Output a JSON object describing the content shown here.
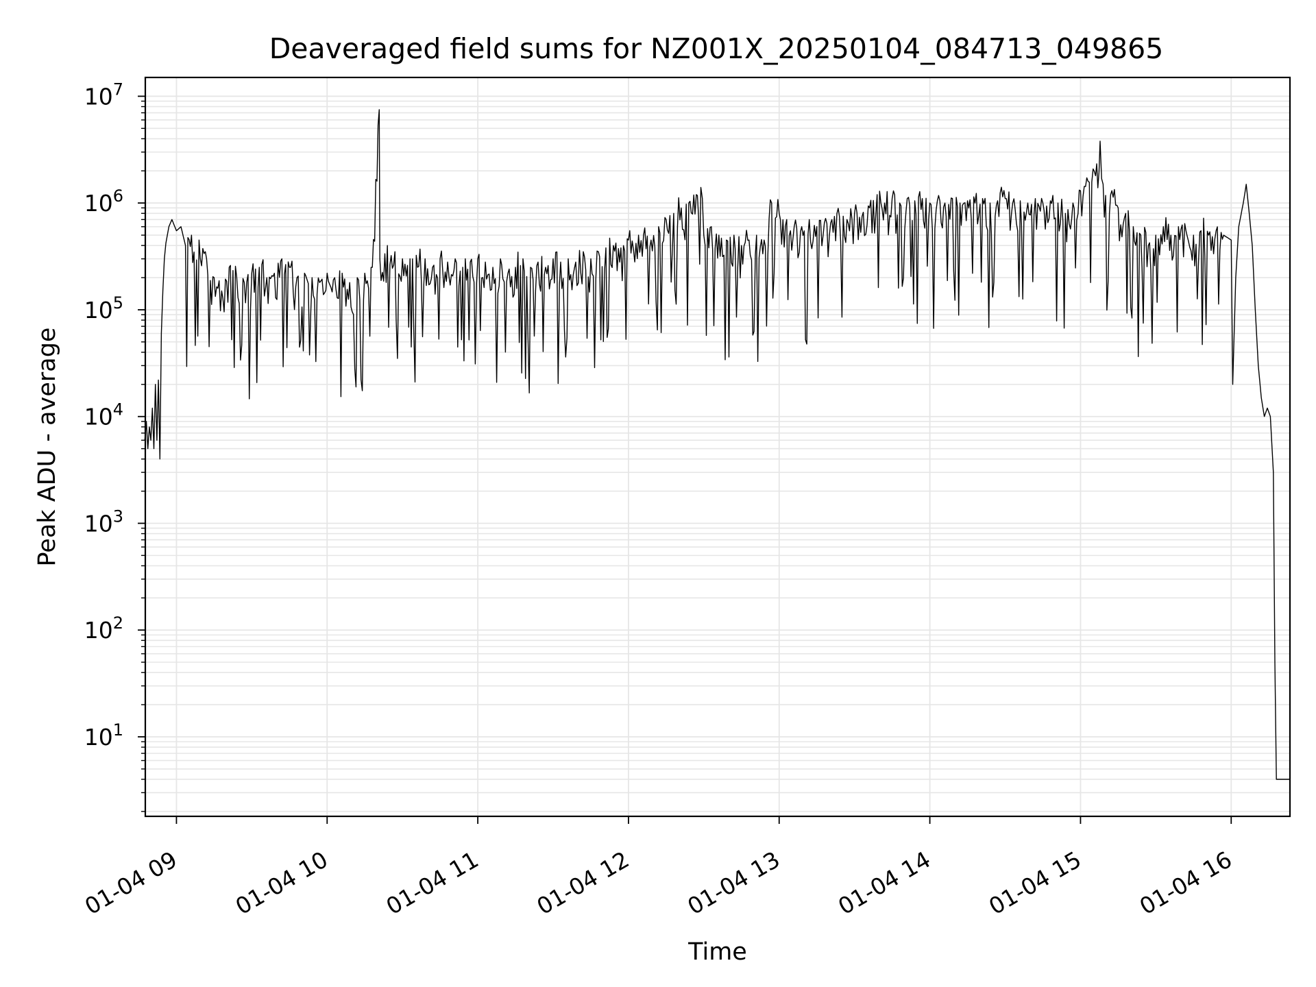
{
  "chart_data": {
    "type": "line",
    "title": "Deaveraged field sums for NZ001X_20250104_084713_049865",
    "xlabel": "Time",
    "ylabel": "Peak ADU - average",
    "y_scale": "log",
    "ylim": [
      1.8,
      15000000
    ],
    "xlim": [
      "01-04 08:47:36",
      "01-04 16:23:24"
    ],
    "grid": true,
    "line_color": "#000000",
    "grid_color": "#e6e6e6",
    "x_ticks": [
      {
        "label": "01-04 09",
        "hour": 9
      },
      {
        "label": "01-04 10",
        "hour": 10
      },
      {
        "label": "01-04 11",
        "hour": 11
      },
      {
        "label": "01-04 12",
        "hour": 12
      },
      {
        "label": "01-04 13",
        "hour": 13
      },
      {
        "label": "01-04 14",
        "hour": 14
      },
      {
        "label": "01-04 15",
        "hour": 15
      },
      {
        "label": "01-04 16",
        "hour": 16
      }
    ],
    "y_ticks": [
      {
        "base": "10",
        "exp": "1",
        "value": 10
      },
      {
        "base": "10",
        "exp": "2",
        "value": 100
      },
      {
        "base": "10",
        "exp": "3",
        "value": 1000
      },
      {
        "base": "10",
        "exp": "4",
        "value": 10000
      },
      {
        "base": "10",
        "exp": "5",
        "value": 100000
      },
      {
        "base": "10",
        "exp": "6",
        "value": 1000000
      },
      {
        "base": "10",
        "exp": "7",
        "value": 10000000
      }
    ],
    "series": [
      {
        "x_unit": "hour of day (01-04)",
        "note_envelope": "dense noisy trace; points below are envelope/anchor samples",
        "points": [
          [
            8.79,
            6000
          ],
          [
            8.8,
            9000
          ],
          [
            8.81,
            5000
          ],
          [
            8.82,
            8000
          ],
          [
            8.83,
            6000
          ],
          [
            8.84,
            12000
          ],
          [
            8.85,
            5000
          ],
          [
            8.86,
            20000
          ],
          [
            8.87,
            6000
          ],
          [
            8.88,
            22000
          ],
          [
            8.89,
            4000
          ],
          [
            8.9,
            60000
          ],
          [
            8.91,
            150000
          ],
          [
            8.92,
            300000
          ],
          [
            8.93,
            420000
          ],
          [
            8.95,
            600000
          ],
          [
            8.97,
            700000
          ],
          [
            9.0,
            550000
          ],
          [
            9.03,
            600000
          ],
          [
            9.06,
            400000
          ],
          [
            9.1,
            500000
          ],
          [
            9.15,
            450000
          ],
          [
            9.2,
            300000
          ],
          [
            9.25,
            200000
          ],
          [
            9.3,
            150000
          ],
          [
            9.35,
            250000
          ],
          [
            9.4,
            200000
          ],
          [
            9.45,
            180000
          ],
          [
            9.5,
            220000
          ],
          [
            9.55,
            250000
          ],
          [
            9.6,
            200000
          ],
          [
            9.65,
            220000
          ],
          [
            9.7,
            300000
          ],
          [
            9.75,
            250000
          ],
          [
            9.8,
            200000
          ],
          [
            9.85,
            220000
          ],
          [
            9.9,
            200000
          ],
          [
            9.95,
            180000
          ],
          [
            10.0,
            220000
          ],
          [
            10.05,
            200000
          ],
          [
            10.1,
            220000
          ],
          [
            10.15,
            180000
          ],
          [
            10.2,
            200000
          ],
          [
            10.25,
            220000
          ],
          [
            10.3,
            250000
          ],
          [
            10.35,
            300000
          ],
          [
            10.346,
            7500000
          ],
          [
            10.4,
            400000
          ],
          [
            10.45,
            350000
          ],
          [
            10.5,
            300000
          ],
          [
            10.55,
            300000
          ],
          [
            10.6,
            250000
          ],
          [
            10.65,
            300000
          ],
          [
            10.7,
            250000
          ],
          [
            10.75,
            300000
          ],
          [
            10.8,
            280000
          ],
          [
            10.85,
            300000
          ],
          [
            10.9,
            250000
          ],
          [
            10.95,
            280000
          ],
          [
            11.0,
            300000
          ],
          [
            11.05,
            280000
          ],
          [
            11.1,
            250000
          ],
          [
            11.15,
            300000
          ],
          [
            11.2,
            220000
          ],
          [
            11.25,
            250000
          ],
          [
            11.3,
            300000
          ],
          [
            11.35,
            250000
          ],
          [
            11.4,
            280000
          ],
          [
            11.45,
            250000
          ],
          [
            11.5,
            300000
          ],
          [
            11.55,
            280000
          ],
          [
            11.6,
            300000
          ],
          [
            11.65,
            280000
          ],
          [
            11.7,
            350000
          ],
          [
            11.75,
            300000
          ],
          [
            11.8,
            350000
          ],
          [
            11.85,
            380000
          ],
          [
            11.9,
            400000
          ],
          [
            11.95,
            380000
          ],
          [
            12.0,
            450000
          ],
          [
            12.05,
            420000
          ],
          [
            12.1,
            500000
          ],
          [
            12.15,
            450000
          ],
          [
            12.2,
            600000
          ],
          [
            12.25,
            700000
          ],
          [
            12.3,
            800000
          ],
          [
            12.35,
            900000
          ],
          [
            12.4,
            1000000
          ],
          [
            12.45,
            1200000
          ],
          [
            12.48,
            1400000
          ],
          [
            12.5,
            500000
          ],
          [
            12.55,
            600000
          ],
          [
            12.6,
            500000
          ],
          [
            12.65,
            450000
          ],
          [
            12.7,
            500000
          ],
          [
            12.75,
            400000
          ],
          [
            12.8,
            450000
          ],
          [
            12.85,
            500000
          ],
          [
            12.9,
            450000
          ],
          [
            12.95,
            1000000
          ],
          [
            13.0,
            800000
          ],
          [
            13.05,
            700000
          ],
          [
            13.1,
            600000
          ],
          [
            13.15,
            600000
          ],
          [
            13.2,
            700000
          ],
          [
            13.25,
            600000
          ],
          [
            13.3,
            650000
          ],
          [
            13.35,
            700000
          ],
          [
            13.4,
            750000
          ],
          [
            13.45,
            700000
          ],
          [
            13.5,
            800000
          ],
          [
            13.55,
            750000
          ],
          [
            13.6,
            900000
          ],
          [
            13.65,
            1200000
          ],
          [
            13.7,
            1000000
          ],
          [
            13.75,
            1100000
          ],
          [
            13.8,
            1000000
          ],
          [
            13.85,
            1100000
          ],
          [
            13.9,
            1050000
          ],
          [
            13.95,
            1100000
          ],
          [
            14.0,
            1000000
          ],
          [
            14.05,
            1050000
          ],
          [
            14.1,
            1000000
          ],
          [
            14.15,
            1100000
          ],
          [
            14.2,
            1000000
          ],
          [
            14.25,
            1050000
          ],
          [
            14.3,
            1000000
          ],
          [
            14.35,
            1100000
          ],
          [
            14.4,
            1000000
          ],
          [
            14.45,
            1050000
          ],
          [
            14.5,
            1100000
          ],
          [
            14.55,
            1000000
          ],
          [
            14.6,
            1050000
          ],
          [
            14.65,
            1000000
          ],
          [
            14.7,
            1100000
          ],
          [
            14.75,
            1000000
          ],
          [
            14.8,
            1050000
          ],
          [
            14.85,
            1000000
          ],
          [
            14.9,
            800000
          ],
          [
            14.95,
            1000000
          ],
          [
            15.0,
            1300000
          ],
          [
            15.05,
            1600000
          ],
          [
            15.1,
            1800000
          ],
          [
            15.13,
            3800000
          ],
          [
            15.15,
            1500000
          ],
          [
            15.2,
            1200000
          ],
          [
            15.25,
            900000
          ],
          [
            15.3,
            800000
          ],
          [
            15.35,
            600000
          ],
          [
            15.4,
            500000
          ],
          [
            15.45,
            400000
          ],
          [
            15.5,
            500000
          ],
          [
            15.55,
            600000
          ],
          [
            15.6,
            500000
          ],
          [
            15.65,
            600000
          ],
          [
            15.7,
            550000
          ],
          [
            15.75,
            500000
          ],
          [
            15.8,
            550000
          ],
          [
            15.85,
            500000
          ],
          [
            15.9,
            550000
          ],
          [
            15.95,
            500000
          ],
          [
            16.0,
            450000
          ],
          [
            16.01,
            20000
          ],
          [
            16.03,
            200000
          ],
          [
            16.05,
            600000
          ],
          [
            16.08,
            1000000
          ],
          [
            16.1,
            1500000
          ],
          [
            16.12,
            800000
          ],
          [
            16.14,
            400000
          ],
          [
            16.16,
            100000
          ],
          [
            16.18,
            30000
          ],
          [
            16.2,
            15000
          ],
          [
            16.22,
            10000
          ],
          [
            16.24,
            12000
          ],
          [
            16.26,
            10000
          ],
          [
            16.28,
            3000
          ],
          [
            16.29,
            50
          ],
          [
            16.3,
            4
          ],
          [
            16.32,
            4
          ],
          [
            16.35,
            4
          ],
          [
            16.39,
            4
          ]
        ]
      }
    ]
  }
}
